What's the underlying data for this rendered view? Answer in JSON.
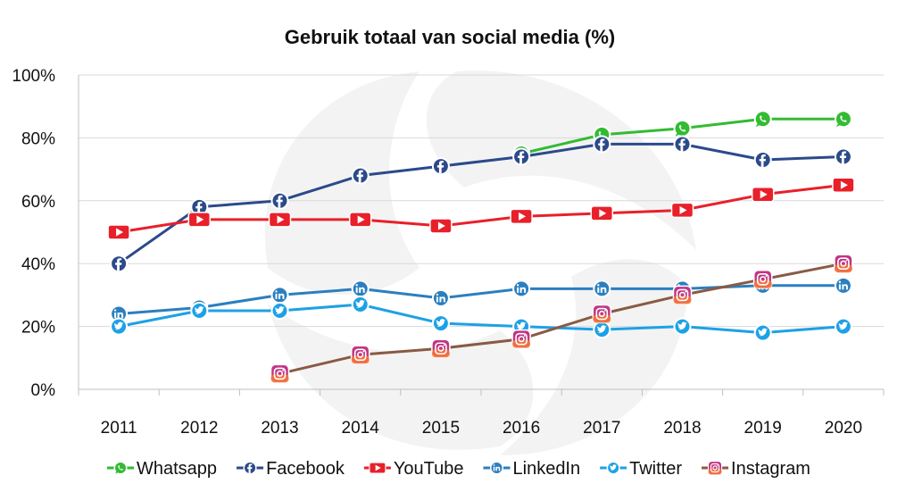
{
  "chart_data": {
    "type": "line",
    "title": "Gebruik totaal van social media (%)",
    "xlabel": "",
    "ylabel": "",
    "categories": [
      "2011",
      "2012",
      "2013",
      "2014",
      "2015",
      "2016",
      "2017",
      "2018",
      "2019",
      "2020"
    ],
    "y_ticks": [
      "0%",
      "20%",
      "40%",
      "60%",
      "80%",
      "100%"
    ],
    "ylim": [
      0,
      100
    ],
    "grid": true,
    "legend_position": "bottom",
    "series": [
      {
        "name": "Whatsapp",
        "icon": "whatsapp-icon",
        "color": "#33bb33",
        "values": [
          null,
          null,
          null,
          null,
          null,
          75,
          81,
          83,
          86,
          86
        ]
      },
      {
        "name": "Facebook",
        "icon": "facebook-icon",
        "color": "#2b4a8a",
        "values": [
          40,
          58,
          60,
          68,
          71,
          74,
          78,
          78,
          73,
          74
        ]
      },
      {
        "name": "YouTube",
        "icon": "youtube-icon",
        "color": "#e8202a",
        "values": [
          50,
          54,
          54,
          54,
          52,
          55,
          56,
          57,
          62,
          65
        ]
      },
      {
        "name": "LinkedIn",
        "icon": "linkedin-icon",
        "color": "#2b7fbf",
        "values": [
          24,
          26,
          30,
          32,
          29,
          32,
          32,
          32,
          33,
          33
        ]
      },
      {
        "name": "Twitter",
        "icon": "twitter-icon",
        "color": "#1da1e6",
        "values": [
          20,
          25,
          25,
          27,
          21,
          20,
          19,
          20,
          18,
          20
        ]
      },
      {
        "name": "Instagram",
        "icon": "instagram-icon",
        "color": "#8a5a44",
        "values": [
          null,
          null,
          5,
          11,
          13,
          16,
          24,
          30,
          35,
          40
        ]
      }
    ]
  }
}
